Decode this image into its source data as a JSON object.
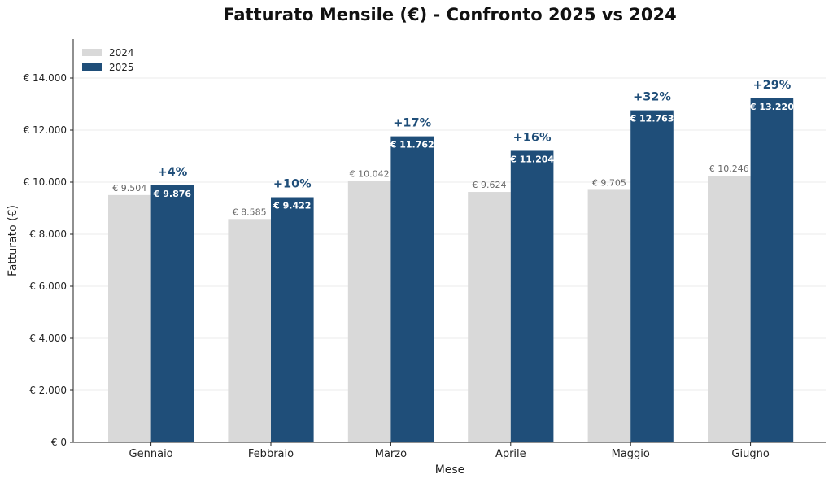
{
  "chart_data": {
    "type": "bar",
    "title": "Fatturato Mensile (€) - Confronto 2025 vs 2024",
    "xlabel": "Mese",
    "ylabel": "Fatturato (€)",
    "ylim": [
      0,
      15500
    ],
    "yticks": [
      0,
      2000,
      4000,
      6000,
      8000,
      10000,
      12000,
      14000
    ],
    "ytick_labels": [
      "€ 0",
      "€ 2.000",
      "€ 4.000",
      "€ 6.000",
      "€ 8.000",
      "€ 10.000",
      "€ 12.000",
      "€ 14.000"
    ],
    "categories": [
      "Gennaio",
      "Febbraio",
      "Marzo",
      "Aprile",
      "Maggio",
      "Giugno"
    ],
    "series": [
      {
        "name": "2024",
        "color": "#d9d9d9",
        "values": [
          9504,
          8585,
          10042,
          9624,
          9705,
          10246
        ],
        "labels": [
          "€ 9.504",
          "€ 8.585",
          "€ 10.042",
          "€ 9.624",
          "€ 9.705",
          "€ 10.246"
        ]
      },
      {
        "name": "2025",
        "color": "#1f4e79",
        "values": [
          9876,
          9422,
          11762,
          11204,
          12763,
          13220
        ],
        "labels": [
          "€ 9.876",
          "€ 9.422",
          "€ 11.762",
          "€ 11.204",
          "€ 12.763",
          "€ 13.220"
        ]
      }
    ],
    "growth_labels": [
      "+4%",
      "+10%",
      "+17%",
      "+16%",
      "+32%",
      "+29%"
    ],
    "grid": true,
    "legend": "top-left"
  }
}
